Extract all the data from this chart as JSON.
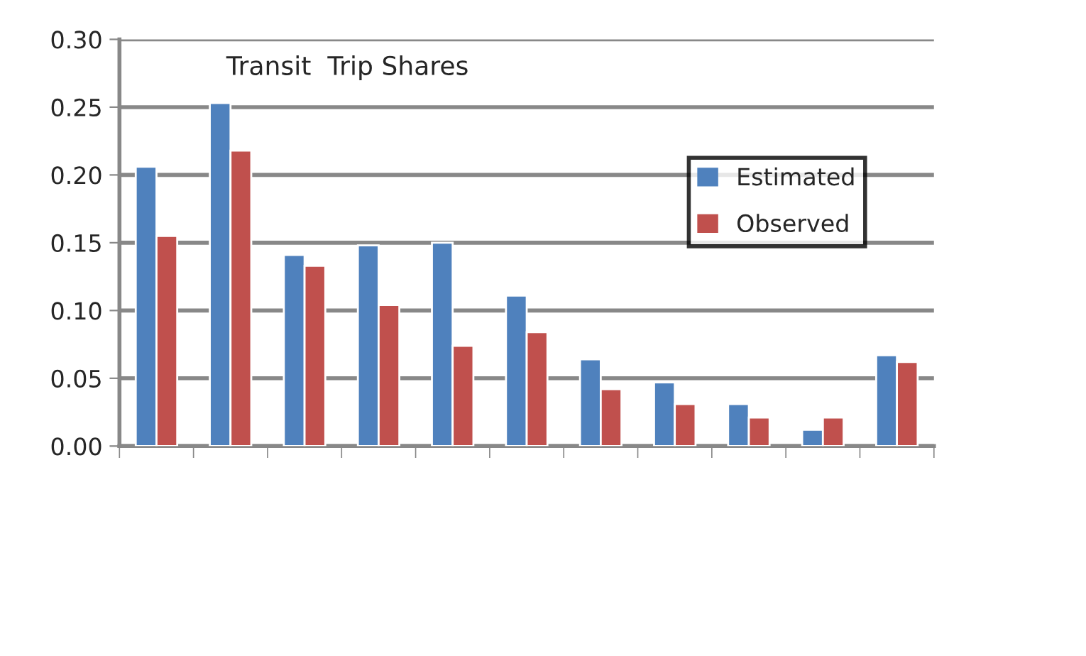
{
  "chart_data": {
    "type": "bar",
    "title": "Transit  Trip Shares",
    "categories": [
      null,
      null,
      null,
      null,
      null,
      null,
      null,
      null,
      null,
      null,
      null
    ],
    "series": [
      {
        "name": "Estimated",
        "color": "#4f81bd",
        "values": [
          0.206,
          0.253,
          0.141,
          0.148,
          0.15,
          0.111,
          0.064,
          0.047,
          0.031,
          0.012,
          0.067
        ]
      },
      {
        "name": "Observed",
        "color": "#c0504d",
        "values": [
          0.155,
          0.218,
          0.133,
          0.104,
          0.074,
          0.084,
          0.042,
          0.031,
          0.021,
          0.021,
          0.062
        ]
      }
    ],
    "ylim": [
      0,
      0.3
    ],
    "yticks": [
      {
        "value": 0,
        "label": "0.00"
      },
      {
        "value": 0.05,
        "label": "0.05"
      },
      {
        "value": 0.1,
        "label": "0.10"
      },
      {
        "value": 0.15,
        "label": "0.15"
      },
      {
        "value": 0.2,
        "label": "0.20"
      },
      {
        "value": 0.25,
        "label": "0.25"
      },
      {
        "value": 0.3,
        "label": "0.30"
      }
    ],
    "grid": "y",
    "legend": "right"
  }
}
